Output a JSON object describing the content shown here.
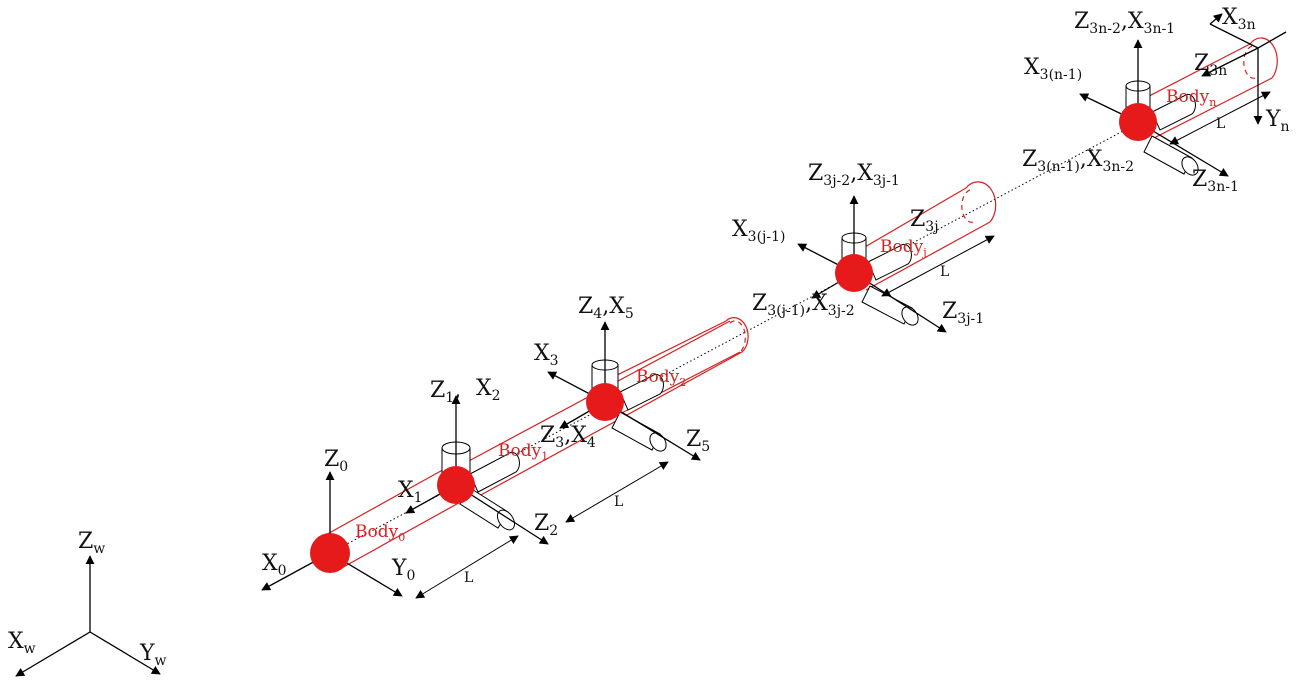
{
  "colors": {
    "link_line": "#d62020",
    "joint_fill": "#e61a1a",
    "text": "#111111"
  },
  "world": {
    "z": "Z",
    "z_sub": "w",
    "x": "X",
    "x_sub": "w",
    "y": "Y",
    "y_sub": "w"
  },
  "body0": {
    "name": "Body",
    "sub": "0",
    "z": "Z",
    "z_sub": "0",
    "x": "X",
    "x_sub": "0",
    "y": "Y",
    "y_sub": "0"
  },
  "body1": {
    "name": "Body",
    "sub": "1",
    "z1": "Z",
    "z1_sub": "1",
    "x2": "X",
    "x2_sub": "2",
    "x1": "X",
    "x1_sub": "1",
    "z2": "Z",
    "z2_sub": "2"
  },
  "body2": {
    "name": "Body",
    "sub": "2",
    "z4x5": "Z",
    "z4_sub": "4",
    "x5": "X",
    "x5_sub": "5",
    "x3": "X",
    "x3_sub": "3",
    "z3x4": "Z",
    "z3_sub": "3",
    "x4": "X",
    "x4_sub": "4",
    "z5": "Z",
    "z5_sub": "5"
  },
  "bodyj": {
    "name": "Body",
    "sub": "j",
    "top": "Z",
    "top_sub": "3j-2",
    "top2": "X",
    "top2_sub": "3j-1",
    "left": "X",
    "left_sub": "3(j-1)",
    "z3j": "Z",
    "z3j_sub": "3j",
    "bottom": "Z",
    "bottom_sub": "3(j-1)",
    "bottom2": "X",
    "bottom2_sub": "3j-2",
    "right": "Z",
    "right_sub": "3j-1"
  },
  "bodyn": {
    "name": "Body",
    "sub": "n",
    "top": "Z",
    "top_sub": "3n-2",
    "top2": "X",
    "top2_sub": "3n-1",
    "x3n": "X",
    "x3n_sub": "3n",
    "left": "X",
    "left_sub": "3(n-1)",
    "z3n": "Z",
    "z3n_sub": "3n",
    "yn": "Y",
    "yn_sub": "n",
    "bottom": "Z",
    "bottom_sub": "3(n-1)",
    "bottom2": "X",
    "bottom2_sub": "3n-2",
    "right": "Z",
    "right_sub": "3n-1"
  },
  "dimension": {
    "length_label": "L"
  },
  "separator": ","
}
